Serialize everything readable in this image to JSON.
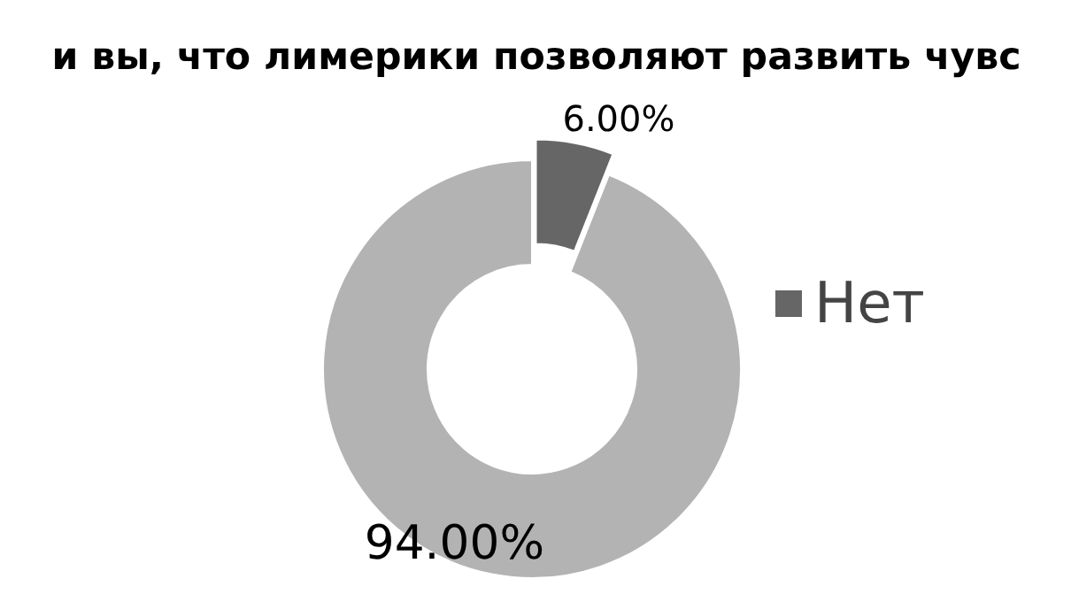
{
  "chart_data": {
    "type": "donut",
    "title": "и вы, что лимерики позволяют развить чувс",
    "categories": [
      null,
      "Нет"
    ],
    "values": [
      94,
      6
    ],
    "colors": [
      "#b3b3b3",
      "#666666"
    ],
    "value_labels": [
      "94.00%",
      "6.00%"
    ],
    "legend": "right"
  }
}
